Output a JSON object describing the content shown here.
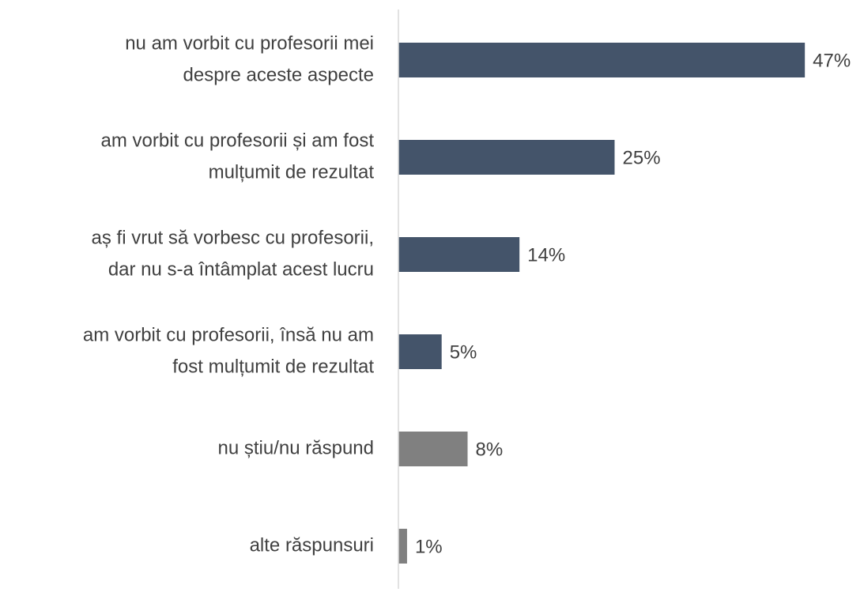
{
  "chart_data": {
    "type": "barh",
    "categories": [
      [
        "nu am vorbit cu profesorii mei",
        "despre aceste aspecte"
      ],
      [
        "am vorbit cu profesorii și am fost",
        "mulțumit de rezultat"
      ],
      [
        "aș fi vrut să vorbesc cu profesorii,",
        "dar nu s-a întâmplat acest lucru"
      ],
      [
        "am vorbit cu profesorii, însă nu am",
        "fost mulțumit de rezultat"
      ],
      [
        "nu știu/nu răspund"
      ],
      [
        "alte răspunsuri"
      ]
    ],
    "values": [
      47,
      25,
      14,
      5,
      8,
      1
    ],
    "value_labels": [
      "47%",
      "25%",
      "14%",
      "5%",
      "8%",
      "1%"
    ],
    "colors": [
      "#44546a",
      "#44546a",
      "#44546a",
      "#44546a",
      "#808080",
      "#808080"
    ],
    "xlim": [
      0,
      50
    ]
  }
}
